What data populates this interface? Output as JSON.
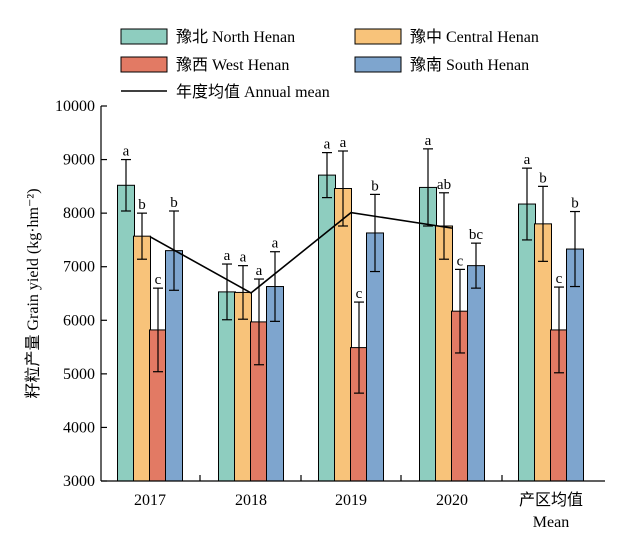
{
  "chart_data": {
    "type": "bar",
    "ylabel": "籽粒产量 Grain yield (kg·hm⁻²)",
    "ylim": [
      3000,
      10000
    ],
    "yticks": [
      3000,
      4000,
      5000,
      6000,
      7000,
      8000,
      9000,
      10000
    ],
    "categories": [
      {
        "label": "2017"
      },
      {
        "label": "2018"
      },
      {
        "label": "2019"
      },
      {
        "label": "2020"
      },
      {
        "label": "产区均值",
        "label2": "Mean"
      }
    ],
    "series": [
      {
        "name": "豫北 North Henan",
        "color": "#8ecdbf",
        "values": [
          8520,
          6530,
          8710,
          8480,
          8170
        ],
        "errors": [
          480,
          520,
          420,
          720,
          670
        ],
        "letters": [
          "a",
          "a",
          "a",
          "a",
          "a"
        ]
      },
      {
        "name": "豫中 Central Henan",
        "color": "#f8c37a",
        "values": [
          7570,
          6520,
          8460,
          7760,
          7800
        ],
        "errors": [
          430,
          500,
          700,
          620,
          700
        ],
        "letters": [
          "b",
          "a",
          "a",
          "ab",
          "b"
        ]
      },
      {
        "name": "豫西 West Henan",
        "color": "#e27a64",
        "values": [
          5820,
          5970,
          5490,
          6170,
          5820
        ],
        "errors": [
          780,
          800,
          850,
          780,
          800
        ],
        "letters": [
          "c",
          "a",
          "c",
          "c",
          "c"
        ]
      },
      {
        "name": "豫南 South Henan",
        "color": "#7ea5ce",
        "values": [
          7300,
          6630,
          7630,
          7020,
          7330
        ],
        "errors": [
          740,
          650,
          720,
          420,
          700
        ],
        "letters": [
          "b",
          "a",
          "b",
          "bc",
          "b"
        ]
      }
    ],
    "annual_mean": {
      "name": "年度均值 Annual mean",
      "color": "#000000",
      "values": [
        7560,
        6510,
        8010,
        7720
      ]
    },
    "legend_position": "top",
    "grid": false
  }
}
